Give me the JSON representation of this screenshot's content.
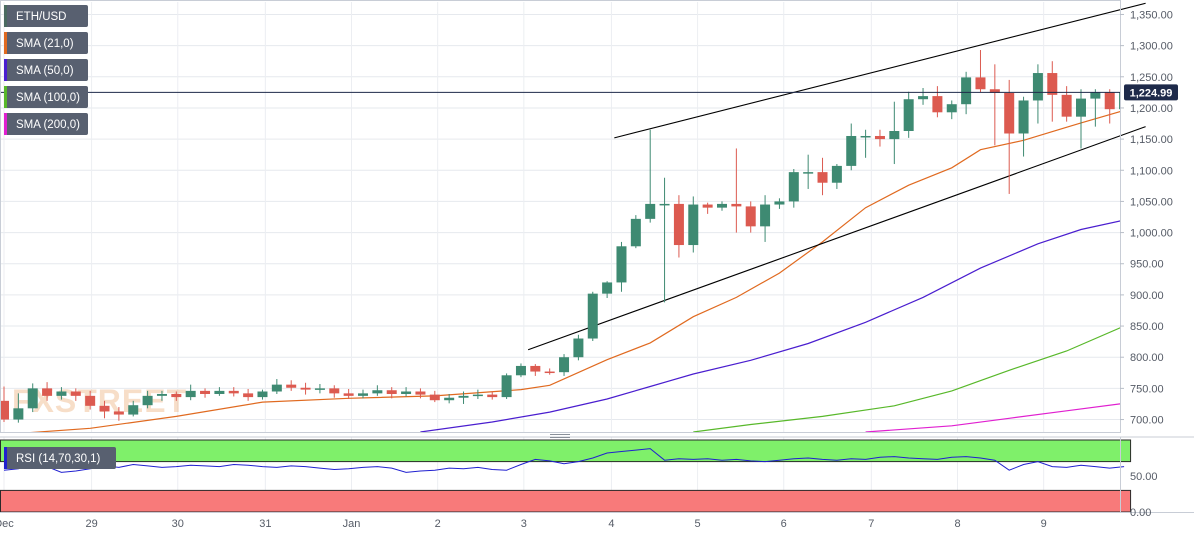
{
  "chart_data": [
    {
      "type": "candlestick",
      "symbol": "ETH/USD",
      "legend": [
        {
          "label": "ETH/USD",
          "color": "#4a6a60"
        },
        {
          "label": "SMA (21,0)",
          "color": "#e06a20"
        },
        {
          "label": "SMA (50,0)",
          "color": "#4a1ecf"
        },
        {
          "label": "SMA (100,0)",
          "color": "#58b82a"
        },
        {
          "label": "SMA (200,0)",
          "color": "#e020d0"
        }
      ],
      "ylim": [
        680,
        1370
      ],
      "y_ticks": [
        "1,350.00",
        "1,300.00",
        "1,250.00",
        "1,200.00",
        "1,150.00",
        "1,100.00",
        "1,050.00",
        "1,000.00",
        "950.00",
        "900.00",
        "850.00",
        "800.00",
        "750.00",
        "700.00"
      ],
      "y_tick_values": [
        1350,
        1300,
        1250,
        1200,
        1150,
        1100,
        1050,
        1000,
        950,
        900,
        850,
        800,
        750,
        700
      ],
      "x_ticks": [
        "Dec",
        "29",
        "30",
        "31",
        "Jan",
        "2",
        "3",
        "4",
        "5",
        "6",
        "7",
        "8",
        "9"
      ],
      "x_tick_index": [
        0,
        6.1,
        12.1,
        18.2,
        24.2,
        30.2,
        36.2,
        42.3,
        48.3,
        54.3,
        60.4,
        66.4,
        72.4
      ],
      "price_now": 1224.99,
      "price_label": "1,224.99",
      "colors": {
        "up": "#3e8a72",
        "down": "#dc5a50",
        "price_line": "#1e2a4a",
        "channel": "#000000"
      },
      "candles": [
        [
          730,
          700,
          753,
          696
        ],
        [
          700,
          718,
          742,
          695
        ],
        [
          718,
          750,
          758,
          712
        ],
        [
          750,
          738,
          760,
          730
        ],
        [
          738,
          745,
          752,
          732
        ],
        [
          745,
          738,
          750,
          730
        ],
        [
          738,
          722,
          746,
          716
        ],
        [
          722,
          713,
          730,
          702
        ],
        [
          713,
          708,
          720,
          698
        ],
        [
          708,
          723,
          730,
          705
        ],
        [
          723,
          738,
          746,
          718
        ],
        [
          738,
          741,
          746,
          730
        ],
        [
          741,
          736,
          745,
          730
        ],
        [
          736,
          746,
          756,
          731
        ],
        [
          746,
          741,
          750,
          735
        ],
        [
          741,
          746,
          752,
          738
        ],
        [
          746,
          742,
          752,
          737
        ],
        [
          742,
          736,
          749,
          730
        ],
        [
          736,
          745,
          748,
          732
        ],
        [
          745,
          756,
          765,
          741
        ],
        [
          756,
          751,
          763,
          746
        ],
        [
          751,
          748,
          759,
          740
        ],
        [
          748,
          750,
          757,
          742
        ],
        [
          750,
          742,
          755,
          735
        ],
        [
          742,
          738,
          749,
          733
        ],
        [
          738,
          742,
          748,
          734
        ],
        [
          742,
          747,
          755,
          738
        ],
        [
          747,
          741,
          752,
          734
        ],
        [
          741,
          745,
          752,
          737
        ],
        [
          745,
          740,
          750,
          734
        ],
        [
          740,
          731,
          746,
          728
        ],
        [
          731,
          735,
          741,
          726
        ],
        [
          735,
          738,
          745,
          725
        ],
        [
          738,
          740,
          748,
          733
        ],
        [
          740,
          736,
          745,
          732
        ],
        [
          736,
          771,
          774,
          733
        ],
        [
          771,
          786,
          790,
          768
        ],
        [
          786,
          777,
          789,
          770
        ],
        [
          777,
          776,
          782,
          772
        ],
        [
          776,
          800,
          805,
          770
        ],
        [
          800,
          830,
          836,
          795
        ],
        [
          830,
          902,
          905,
          826
        ],
        [
          902,
          920,
          922,
          895
        ],
        [
          920,
          978,
          985,
          905
        ],
        [
          978,
          1022,
          1028,
          975
        ],
        [
          1022,
          1046,
          1165,
          1016
        ],
        [
          1046,
          1046,
          1088,
          888
        ],
        [
          1046,
          980,
          1060,
          960
        ],
        [
          980,
          1045,
          1058,
          968
        ],
        [
          1045,
          1040,
          1048,
          1030
        ],
        [
          1040,
          1046,
          1050,
          1035
        ],
        [
          1046,
          1042,
          1135,
          1000
        ],
        [
          1042,
          1010,
          1050,
          1000
        ],
        [
          1010,
          1045,
          1060,
          985
        ],
        [
          1045,
          1050,
          1055,
          1038
        ],
        [
          1050,
          1097,
          1102,
          1040
        ],
        [
          1097,
          1097,
          1125,
          1070
        ],
        [
          1097,
          1080,
          1120,
          1060
        ],
        [
          1080,
          1107,
          1110,
          1070
        ],
        [
          1107,
          1155,
          1175,
          1100
        ],
        [
          1155,
          1155,
          1165,
          1120
        ],
        [
          1155,
          1150,
          1165,
          1138
        ],
        [
          1150,
          1163,
          1210,
          1110
        ],
        [
          1163,
          1214,
          1226,
          1152
        ],
        [
          1214,
          1219,
          1232,
          1205
        ],
        [
          1219,
          1193,
          1235,
          1185
        ],
        [
          1193,
          1206,
          1212,
          1182
        ],
        [
          1206,
          1249,
          1258,
          1190
        ],
        [
          1249,
          1230,
          1293,
          1225
        ],
        [
          1230,
          1224,
          1270,
          1140
        ],
        [
          1224,
          1159,
          1245,
          1062
        ],
        [
          1159,
          1212,
          1218,
          1122
        ],
        [
          1212,
          1256,
          1270,
          1175
        ],
        [
          1256,
          1221,
          1275,
          1178
        ],
        [
          1221,
          1186,
          1235,
          1178
        ],
        [
          1186,
          1215,
          1230,
          1135
        ],
        [
          1215,
          1225,
          1230,
          1170
        ],
        [
          1225,
          1198,
          1230,
          1175
        ],
        [
          1198,
          1225,
          1233,
          1188
        ]
      ],
      "sma21": [
        [
          0,
          676
        ],
        [
          6,
          686
        ],
        [
          12,
          705
        ],
        [
          18,
          728
        ],
        [
          24,
          734
        ],
        [
          30,
          738
        ],
        [
          36,
          748
        ],
        [
          38,
          755
        ],
        [
          42,
          796
        ],
        [
          45,
          823
        ],
        [
          48,
          865
        ],
        [
          51,
          896
        ],
        [
          54,
          935
        ],
        [
          57,
          985
        ],
        [
          60,
          1040
        ],
        [
          63,
          1076
        ],
        [
          66,
          1104
        ],
        [
          68,
          1133
        ],
        [
          71,
          1148
        ],
        [
          75,
          1176
        ],
        [
          78,
          1196
        ]
      ],
      "sma50": [
        [
          29,
          680
        ],
        [
          34,
          696
        ],
        [
          38,
          712
        ],
        [
          42,
          733
        ],
        [
          45,
          753
        ],
        [
          48,
          773
        ],
        [
          52,
          795
        ],
        [
          56,
          822
        ],
        [
          60,
          856
        ],
        [
          64,
          896
        ],
        [
          68,
          943
        ],
        [
          72,
          982
        ],
        [
          75,
          1005
        ],
        [
          78,
          1020
        ]
      ],
      "sma100": [
        [
          48,
          680
        ],
        [
          52,
          692
        ],
        [
          57,
          705
        ],
        [
          62,
          722
        ],
        [
          66,
          746
        ],
        [
          70,
          779
        ],
        [
          74,
          810
        ],
        [
          78,
          850
        ]
      ],
      "sma200": [
        [
          60,
          680
        ],
        [
          66,
          690
        ],
        [
          70,
          702
        ],
        [
          74,
          714
        ],
        [
          78,
          726
        ]
      ],
      "channel_upper": [
        [
          42.5,
          1152
        ],
        [
          79.5,
          1368
        ]
      ],
      "channel_lower": [
        [
          36.5,
          812
        ],
        [
          79.5,
          1170
        ]
      ]
    },
    {
      "type": "line",
      "indicator": "RSI",
      "label": "RSI (14,70,30,1)",
      "ylim": [
        0,
        100
      ],
      "y_ticks": [
        "50.00",
        "0.00"
      ],
      "y_tick_values": [
        50,
        0
      ],
      "overbought": 70,
      "oversold": 30,
      "colors": {
        "line": "#2020d0",
        "overbought_zone": "#7ff06a",
        "oversold_zone": "#f87a7a"
      },
      "values": [
        58,
        60,
        65,
        63,
        55,
        57,
        60,
        64,
        62,
        66,
        64,
        62,
        63,
        65,
        64,
        63,
        66,
        65,
        63,
        62,
        64,
        63,
        61,
        59,
        60,
        62,
        63,
        61,
        55,
        57,
        58,
        61,
        60,
        62,
        59,
        58,
        66,
        73,
        71,
        67,
        70,
        75,
        82,
        84,
        86,
        88,
        72,
        74,
        73,
        74,
        72,
        73,
        71,
        70,
        72,
        74,
        75,
        73,
        72,
        74,
        73,
        76,
        77,
        75,
        74,
        73,
        76,
        77,
        75,
        72,
        58,
        66,
        70,
        63,
        62,
        65,
        63,
        61,
        63
      ]
    }
  ],
  "watermark": "FXSTREET"
}
